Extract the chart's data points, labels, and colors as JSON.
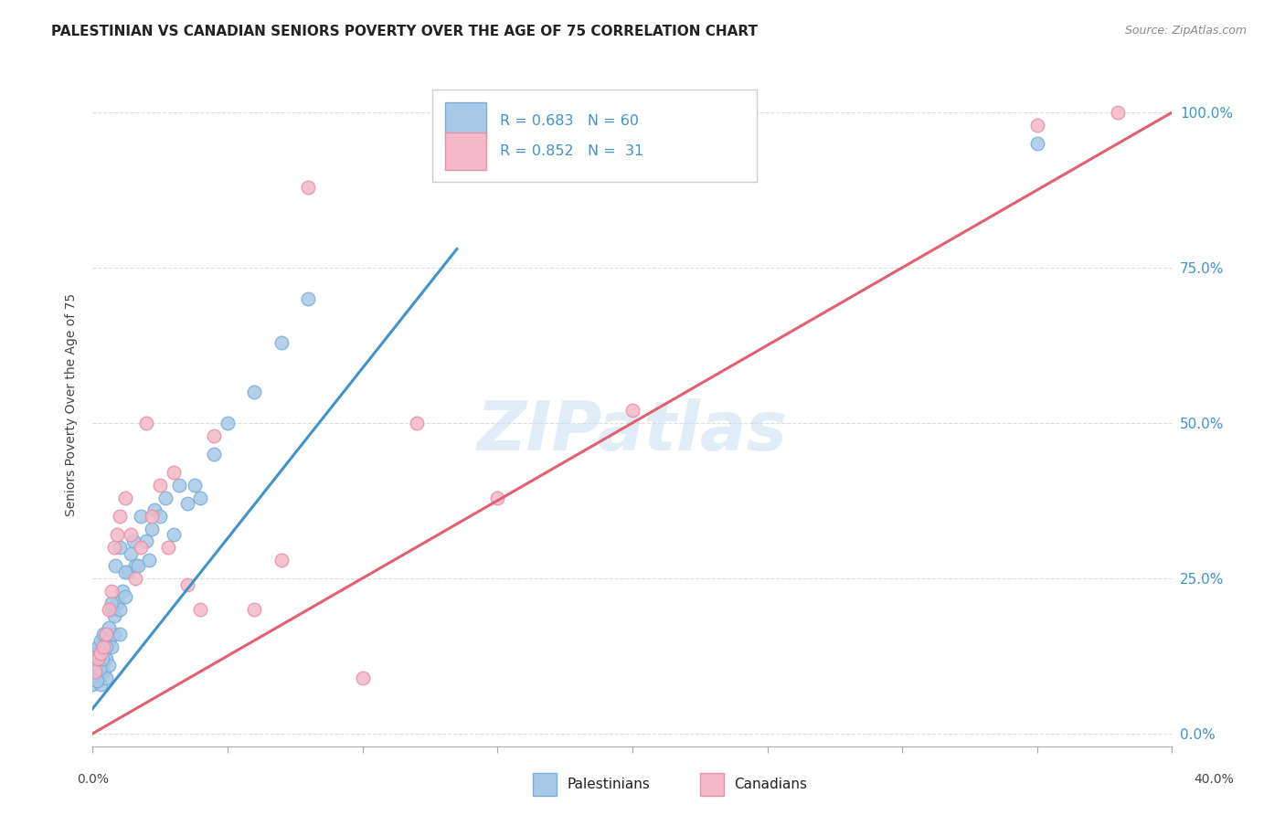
{
  "title": "PALESTINIAN VS CANADIAN SENIORS POVERTY OVER THE AGE OF 75 CORRELATION CHART",
  "source": "Source: ZipAtlas.com",
  "ylabel": "Seniors Poverty Over the Age of 75",
  "ytick_labels": [
    "0.0%",
    "25.0%",
    "50.0%",
    "75.0%",
    "100.0%"
  ],
  "ytick_values": [
    0.0,
    25.0,
    50.0,
    75.0,
    100.0
  ],
  "xlim": [
    0.0,
    40.0
  ],
  "ylim": [
    -2.0,
    108.0
  ],
  "background_color": "#ffffff",
  "grid_color": "#dddddd",
  "watermark_text": "ZIPatlas",
  "watermark_color": "#c8ddf0",
  "legend_blue_text": "R = 0.683   N = 60",
  "legend_pink_text": "R = 0.852   N =  31",
  "blue_scatter_face": "#a8c8e8",
  "blue_scatter_edge": "#7aafd4",
  "pink_scatter_face": "#f4b8c8",
  "pink_scatter_edge": "#e890a8",
  "blue_line_color": "#4292c6",
  "pink_line_color": "#e06070",
  "diag_line_color": "#c0c0c0",
  "right_ytick_color": "#4292c6",
  "pal_x": [
    0.0,
    0.1,
    0.1,
    0.1,
    0.2,
    0.2,
    0.2,
    0.3,
    0.3,
    0.3,
    0.3,
    0.4,
    0.4,
    0.4,
    0.5,
    0.5,
    0.5,
    0.6,
    0.6,
    0.7,
    0.7,
    0.8,
    0.8,
    0.9,
    1.0,
    1.0,
    1.1,
    1.2,
    1.3,
    1.4,
    1.5,
    1.6,
    1.7,
    1.8,
    2.0,
    2.1,
    2.2,
    2.3,
    2.5,
    2.7,
    3.0,
    3.2,
    3.5,
    3.8,
    4.0,
    4.5,
    5.0,
    6.0,
    7.0,
    8.0,
    0.15,
    0.25,
    0.35,
    0.5,
    0.6,
    0.7,
    0.85,
    1.0,
    1.2,
    35.0
  ],
  "pal_y": [
    8.0,
    10.0,
    11.0,
    13.0,
    9.0,
    11.0,
    14.0,
    8.0,
    10.0,
    13.0,
    15.0,
    10.0,
    13.0,
    16.0,
    9.0,
    12.0,
    16.0,
    11.0,
    15.0,
    14.0,
    20.0,
    16.0,
    19.0,
    21.0,
    16.0,
    20.0,
    23.0,
    22.0,
    26.0,
    29.0,
    31.0,
    27.0,
    27.0,
    35.0,
    31.0,
    28.0,
    33.0,
    36.0,
    35.0,
    38.0,
    32.0,
    40.0,
    37.0,
    40.0,
    38.0,
    45.0,
    50.0,
    55.0,
    63.0,
    70.0,
    8.5,
    10.5,
    12.0,
    14.0,
    17.0,
    21.0,
    27.0,
    30.0,
    26.0,
    95.0
  ],
  "can_x": [
    0.1,
    0.2,
    0.3,
    0.4,
    0.5,
    0.6,
    0.7,
    0.8,
    0.9,
    1.0,
    1.2,
    1.4,
    1.6,
    1.8,
    2.0,
    2.2,
    2.5,
    2.8,
    3.0,
    3.5,
    4.0,
    4.5,
    6.0,
    7.0,
    8.0,
    10.0,
    12.0,
    15.0,
    20.0,
    35.0,
    38.0
  ],
  "can_y": [
    10.0,
    12.0,
    13.0,
    14.0,
    16.0,
    20.0,
    23.0,
    30.0,
    32.0,
    35.0,
    38.0,
    32.0,
    25.0,
    30.0,
    50.0,
    35.0,
    40.0,
    30.0,
    42.0,
    24.0,
    20.0,
    48.0,
    20.0,
    28.0,
    88.0,
    9.0,
    50.0,
    38.0,
    52.0,
    98.0,
    100.0
  ],
  "blue_line_x": [
    0.0,
    13.5
  ],
  "blue_line_y": [
    4.0,
    78.0
  ],
  "pink_line_x": [
    0.0,
    40.0
  ],
  "pink_line_y": [
    0.0,
    100.0
  ],
  "diag_line_x": [
    0.0,
    40.0
  ],
  "diag_line_y": [
    0.0,
    100.0
  ],
  "xtick_positions": [
    0,
    5,
    10,
    15,
    20,
    25,
    30,
    35,
    40
  ],
  "xtick_labels_left": "0.0%",
  "xtick_labels_right": "40.0%",
  "bottom_legend_pal": "Palestinians",
  "bottom_legend_can": "Canadians"
}
